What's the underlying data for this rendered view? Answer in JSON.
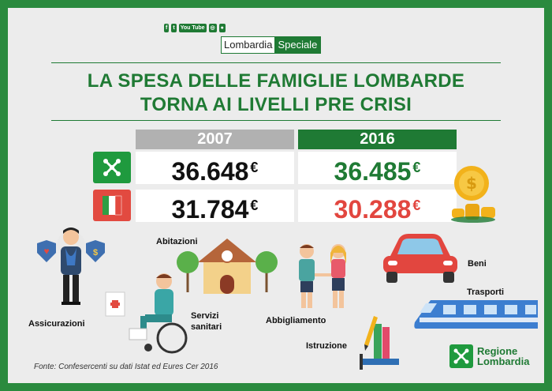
{
  "header": {
    "social_icons": [
      "facebook-icon",
      "twitter-icon",
      "youtube-icon",
      "instagram-icon",
      "messenger-icon"
    ],
    "social_labels": {
      "youtube": "You Tube"
    },
    "logo_left": "Lombardia",
    "logo_right": "Speciale"
  },
  "title": {
    "line1": "LA SPESA DELLE FAMIGLIE LOMBARDE",
    "line2": "TORNA AI LIVELLI PRE CRISI"
  },
  "table": {
    "years": [
      "2007",
      "2016"
    ],
    "rows": [
      {
        "region": "Lombardia",
        "flag_icon": "lombardy-flag-icon",
        "v2007": "36.648",
        "v2016": "36.485"
      },
      {
        "region": "Italia",
        "flag_icon": "italy-flag-icon",
        "v2007": "31.784",
        "v2016": "30.288"
      }
    ],
    "currency": "€"
  },
  "categories": {
    "assicurazioni": "Assicurazioni",
    "abitazioni": "Abitazioni",
    "servizi_1": "Servizi",
    "servizi_2": "sanitari",
    "abbigliamento": "Abbigliamento",
    "istruzione": "Istruzione",
    "beni": "Beni",
    "trasporti": "Trasporti"
  },
  "footer": {
    "source": "Fonte: Confesercenti su dati Istat ed Eures Cer 2016",
    "brand_line1": "Regione",
    "brand_line2": "Lombardia"
  },
  "colors": {
    "green": "#1f7a34",
    "red": "#e2463f",
    "grey": "#b1b1b1",
    "background": "#ececec"
  }
}
